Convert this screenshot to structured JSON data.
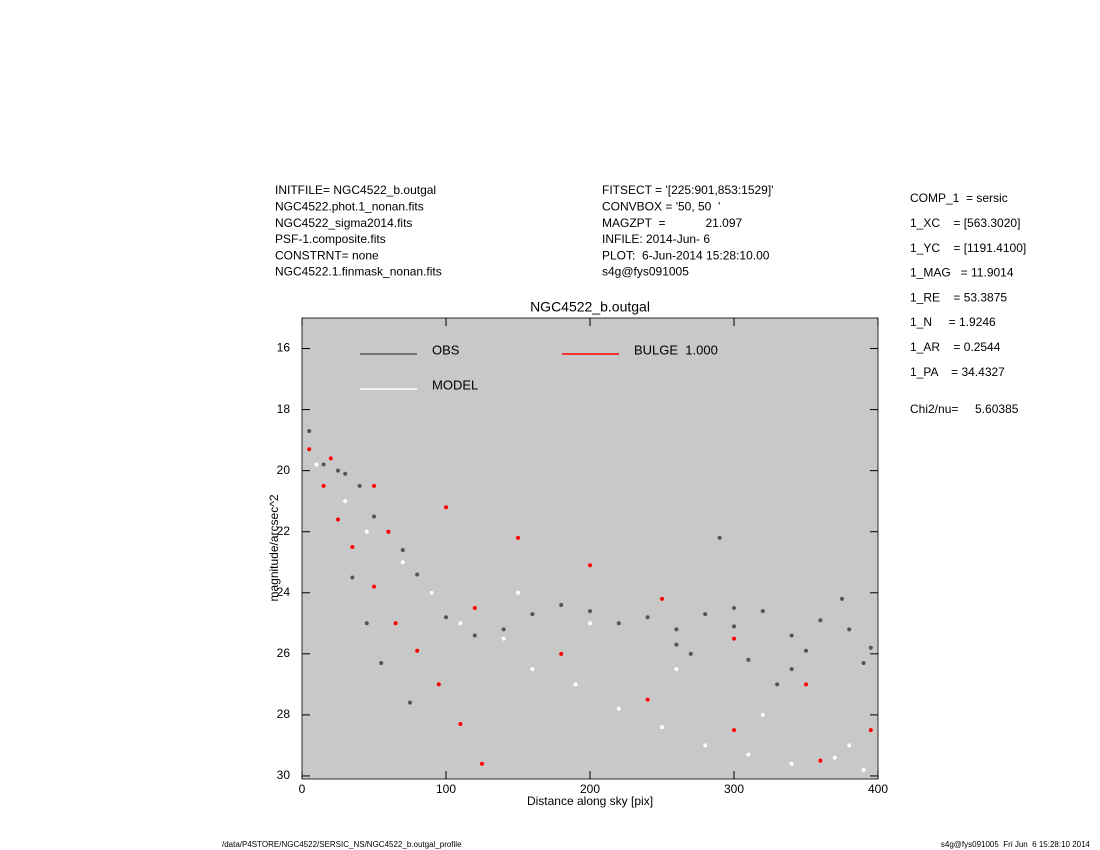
{
  "chart_data": {
    "type": "scatter",
    "title": "NGC4522_b.outgal",
    "x_label": "Distance along sky [pix]",
    "y_label": "magnitude/arcsec^2",
    "xlim": [
      0,
      400
    ],
    "xticks": [
      0,
      100,
      200,
      300,
      400
    ],
    "ylim": [
      30.1,
      15
    ],
    "yticks": [
      16,
      18,
      20,
      22,
      24,
      26,
      28,
      30
    ],
    "background": "#c8c8c8",
    "series": [
      {
        "name": "OBS",
        "color": "#555555",
        "x": [
          5,
          15,
          25,
          30,
          40,
          50,
          60,
          70,
          80,
          90,
          100,
          120,
          140,
          160,
          180,
          200,
          220,
          240,
          260,
          280,
          300,
          320,
          340,
          360,
          380,
          395,
          270,
          310,
          350,
          390,
          35,
          45,
          55,
          75,
          260,
          300,
          340,
          375,
          290,
          330
        ],
        "values": [
          18.7,
          19.8,
          20,
          20.1,
          20.5,
          21.5,
          22,
          22.6,
          23.4,
          24,
          24.8,
          25.4,
          25.2,
          24.7,
          24.4,
          24.6,
          25,
          24.8,
          25.2,
          24.7,
          25.1,
          24.6,
          25.4,
          24.9,
          25.2,
          25.8,
          26,
          26.2,
          25.9,
          26.3,
          23.5,
          25,
          26.3,
          27.6,
          25.7,
          24.5,
          26.5,
          24.2,
          22.2,
          27
        ]
      },
      {
        "name": "MODEL",
        "color": "#ffffff",
        "x": [
          10,
          30,
          45,
          70,
          90,
          110,
          140,
          160,
          190,
          220,
          250,
          280,
          310,
          340,
          370,
          390,
          150,
          200,
          260,
          320,
          380
        ],
        "values": [
          19.8,
          21,
          22,
          23,
          24,
          25,
          25.5,
          26.5,
          27,
          27.8,
          28.4,
          29,
          29.3,
          29.6,
          29.4,
          29.8,
          24,
          25,
          26.5,
          28,
          29
        ]
      },
      {
        "name": "BULGE  1.000",
        "color": "#ff0000",
        "x": [
          5,
          15,
          25,
          35,
          50,
          65,
          80,
          95,
          110,
          125,
          20,
          50,
          100,
          150,
          200,
          250,
          300,
          350,
          395,
          60,
          120,
          180,
          240,
          300,
          360
        ],
        "values": [
          19.3,
          20.5,
          21.6,
          22.5,
          23.8,
          25,
          25.9,
          27,
          28.3,
          29.6,
          19.6,
          20.5,
          21.2,
          22.2,
          23.1,
          24.2,
          25.5,
          27,
          28.5,
          22,
          24.5,
          26,
          27.5,
          28.5,
          29.5
        ]
      }
    ]
  },
  "header": {
    "left": [
      "INITFILE= NGC4522_b.outgal",
      "NGC4522.phot.1_nonan.fits",
      "NGC4522_sigma2014.fits",
      "PSF-1.composite.fits",
      "CONSTRNT= none",
      "NGC4522.1.finmask_nonan.fits"
    ],
    "middle": [
      "FITSECT = '[225:901,853:1529]'",
      "CONVBOX = '50, 50  '",
      "MAGZPT  =            21.097",
      "INFILE: 2014-Jun- 6",
      "PLOT:  6-Jun-2014 15:28:10.00",
      "s4g@fys091005"
    ],
    "right": [
      "COMP_1  = sersic",
      "1_XC    = [563.3020]",
      "1_YC    = [1191.4100]",
      "1_MAG   = 11.9014",
      "1_RE    = 53.3875",
      "1_N     = 1.9246",
      "1_AR    = 0.2544",
      "1_PA    = 34.4327"
    ],
    "chi2": "Chi2/nu=     5.60385"
  },
  "footer": {
    "path": "/data/P4STORE/NGC4522/SERSIC_NS/NGC4522_b.outgal_profile",
    "stamp": "s4g@fys091005  Fri Jun  6 15:28:10 2014"
  }
}
